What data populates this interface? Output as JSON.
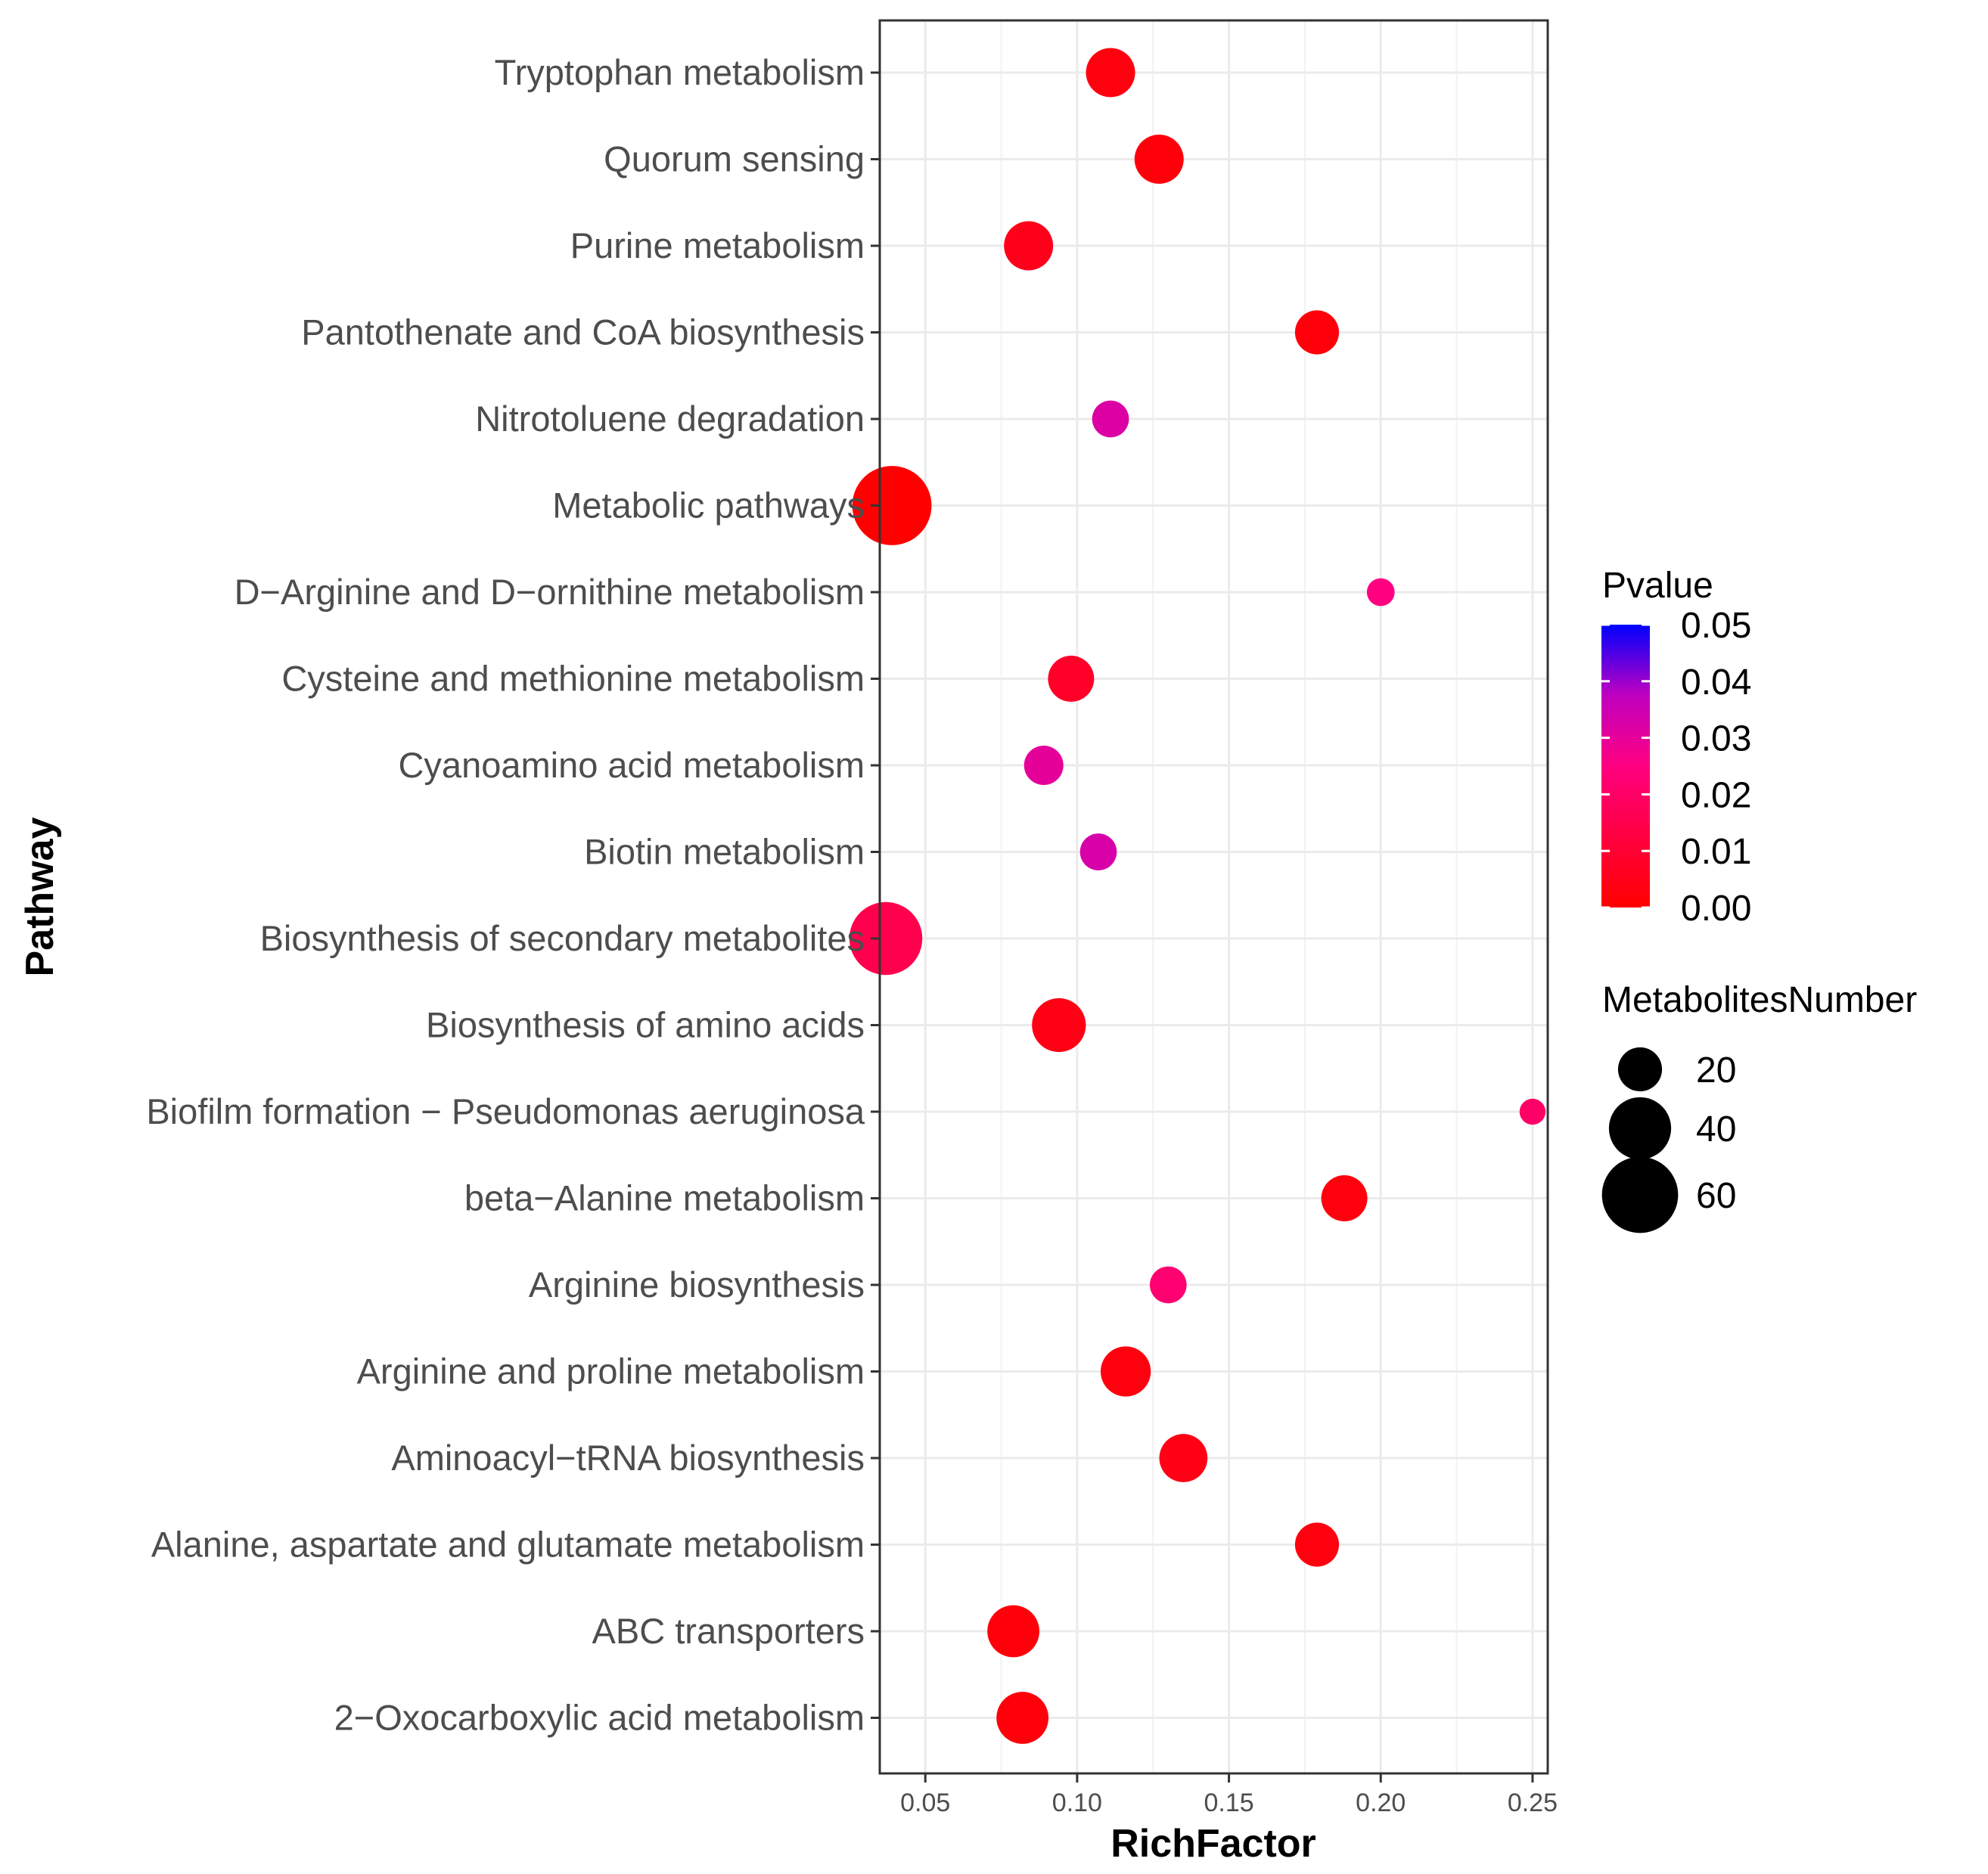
{
  "chart_data": {
    "type": "scatter",
    "xlabel": "RichFactor",
    "ylabel": "Pathway",
    "xlim": [
      0.035,
      0.255
    ],
    "x_ticks": [
      0.05,
      0.1,
      0.15,
      0.2,
      0.25
    ],
    "x_tick_labels": [
      "0.05",
      "0.10",
      "0.15",
      "0.20",
      "0.25"
    ],
    "grid": true,
    "points": [
      {
        "pathway": "Tryptophan metabolism",
        "rich_factor": 0.111,
        "pvalue": 0.003,
        "metabolites": 25
      },
      {
        "pathway": "Quorum sensing",
        "rich_factor": 0.127,
        "pvalue": 0.002,
        "metabolites": 25
      },
      {
        "pathway": "Purine metabolism",
        "rich_factor": 0.084,
        "pvalue": 0.005,
        "metabolites": 25
      },
      {
        "pathway": "Pantothenate and CoA biosynthesis",
        "rich_factor": 0.179,
        "pvalue": 0.002,
        "metabolites": 20
      },
      {
        "pathway": "Nitrotoluene degradation",
        "rich_factor": 0.111,
        "pvalue": 0.032,
        "metabolites": 14
      },
      {
        "pathway": "Metabolic pathways",
        "rich_factor": 0.039,
        "pvalue": 0.0,
        "metabolites": 65
      },
      {
        "pathway": "D−Arginine and D−ornithine metabolism",
        "rich_factor": 0.2,
        "pvalue": 0.025,
        "metabolites": 8
      },
      {
        "pathway": "Cysteine and methionine metabolism",
        "rich_factor": 0.098,
        "pvalue": 0.008,
        "metabolites": 22
      },
      {
        "pathway": "Cyanoamino acid metabolism",
        "rich_factor": 0.089,
        "pvalue": 0.03,
        "metabolites": 16
      },
      {
        "pathway": "Biotin metabolism",
        "rich_factor": 0.107,
        "pvalue": 0.033,
        "metabolites": 14
      },
      {
        "pathway": "Biosynthesis of secondary metabolites",
        "rich_factor": 0.037,
        "pvalue": 0.015,
        "metabolites": 55
      },
      {
        "pathway": "Biosynthesis of amino acids",
        "rich_factor": 0.094,
        "pvalue": 0.004,
        "metabolites": 30
      },
      {
        "pathway": "Biofilm formation − Pseudomonas aeruginosa",
        "rich_factor": 0.25,
        "pvalue": 0.02,
        "metabolites": 7
      },
      {
        "pathway": "beta−Alanine metabolism",
        "rich_factor": 0.188,
        "pvalue": 0.003,
        "metabolites": 22
      },
      {
        "pathway": "Arginine biosynthesis",
        "rich_factor": 0.13,
        "pvalue": 0.022,
        "metabolites": 14
      },
      {
        "pathway": "Arginine and proline metabolism",
        "rich_factor": 0.116,
        "pvalue": 0.003,
        "metabolites": 26
      },
      {
        "pathway": "Aminoacyl−tRNA biosynthesis",
        "rich_factor": 0.135,
        "pvalue": 0.004,
        "metabolites": 24
      },
      {
        "pathway": "Alanine, aspartate and glutamate metabolism",
        "rich_factor": 0.179,
        "pvalue": 0.003,
        "metabolites": 20
      },
      {
        "pathway": "ABC transporters",
        "rich_factor": 0.079,
        "pvalue": 0.002,
        "metabolites": 28
      },
      {
        "pathway": "2−Oxocarboxylic acid metabolism",
        "rich_factor": 0.082,
        "pvalue": 0.002,
        "metabolites": 28
      }
    ],
    "color_legend": {
      "title": "Pvalue",
      "range": [
        0.0,
        0.05
      ],
      "low_color": "#ff0000",
      "high_color": "#0000ff",
      "ticks": [
        0.05,
        0.04,
        0.03,
        0.02,
        0.01,
        0.0
      ],
      "tick_labels": [
        "0.05",
        "0.04",
        "0.03",
        "0.02",
        "0.01",
        "0.00"
      ]
    },
    "size_legend": {
      "title": "MetabolitesNumber",
      "values": [
        20,
        40,
        60
      ],
      "labels": [
        "20",
        "40",
        "60"
      ]
    }
  }
}
